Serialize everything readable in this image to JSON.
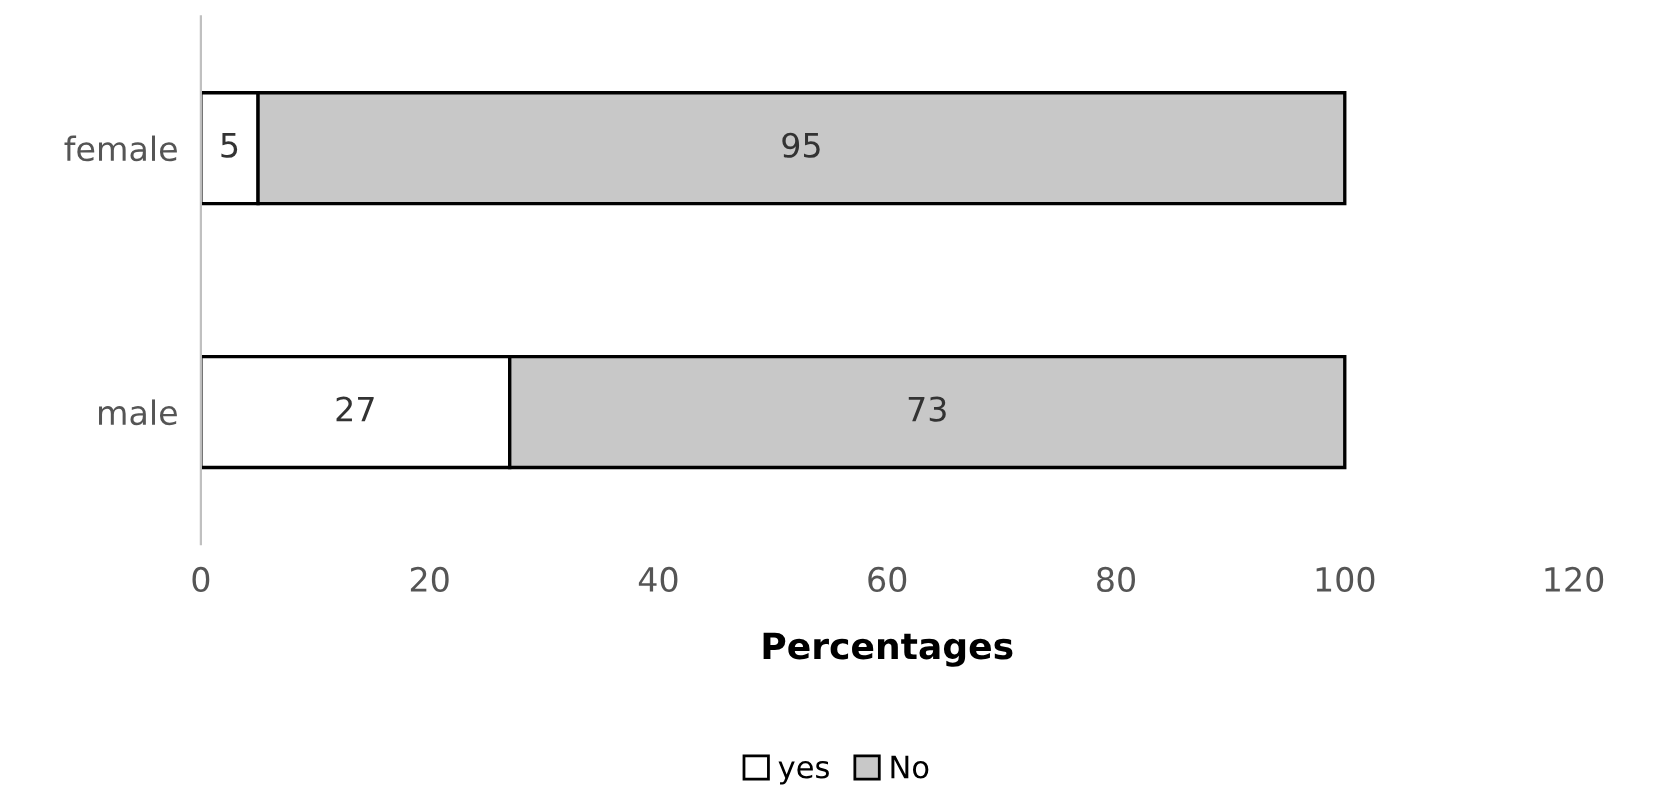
{
  "chart_data": {
    "type": "bar",
    "orientation": "horizontal",
    "stacked": true,
    "xlabel": "Percentages",
    "categories": [
      "female",
      "male"
    ],
    "series": [
      {
        "name": "yes",
        "color": "#ffffff",
        "values": [
          5,
          27
        ]
      },
      {
        "name": "No",
        "color": "#c8c8c8",
        "values": [
          95,
          73
        ]
      }
    ],
    "xlim": [
      0,
      120
    ],
    "xticks": [
      0,
      20,
      40,
      60,
      80,
      100,
      120
    ],
    "grid": false,
    "legend": "bottom",
    "data_labels": true
  }
}
